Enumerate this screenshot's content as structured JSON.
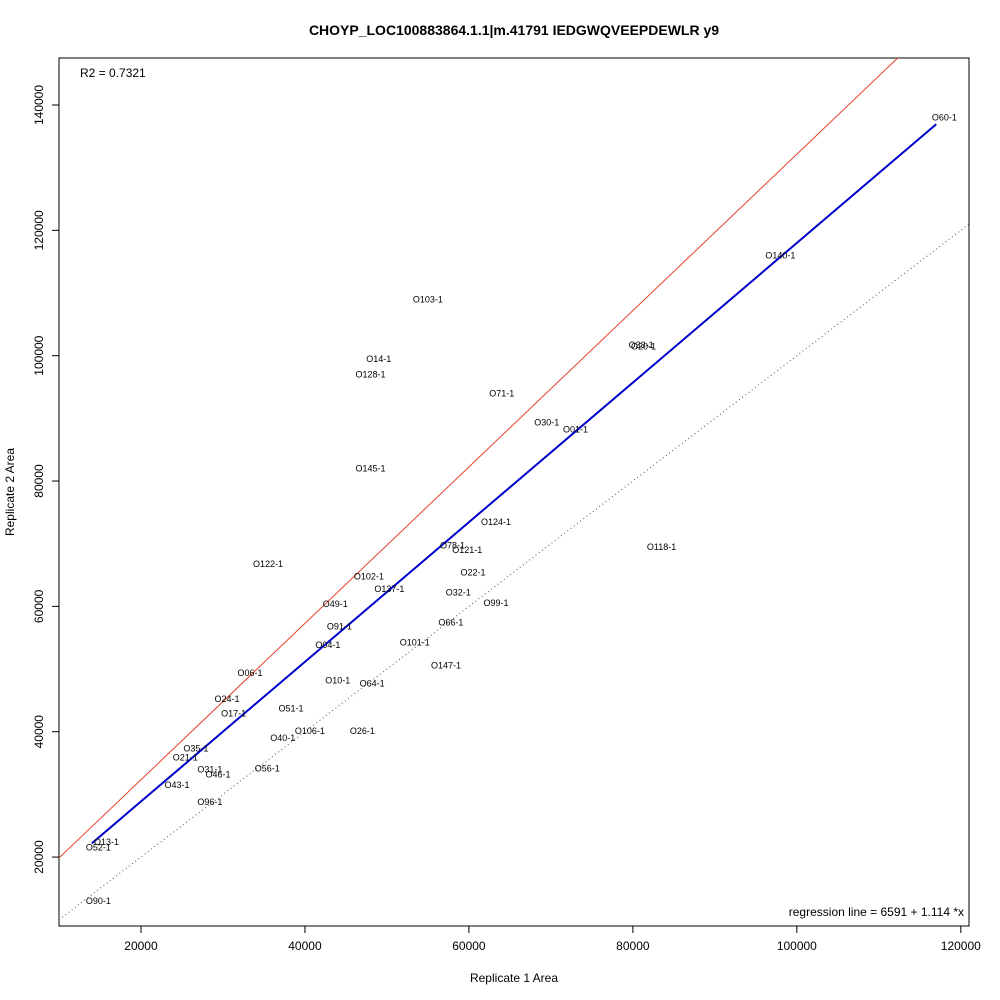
{
  "chart_data": {
    "type": "scatter",
    "title": "CHOYP_LOC100883864.1.1|m.41791 IEDGWQVEEPDEWLR y9",
    "xlabel": "Replicate 1 Area",
    "ylabel": "Replicate 2 Area",
    "xlim": [
      10000,
      121000
    ],
    "ylim": [
      9000,
      147500
    ],
    "xticks": [
      20000,
      40000,
      60000,
      80000,
      100000,
      120000
    ],
    "yticks": [
      20000,
      40000,
      60000,
      80000,
      100000,
      120000,
      140000
    ],
    "grid": false,
    "r2_label": "R2 = 0.7321",
    "regression_label": "regression line = 6591 + 1.114 *x",
    "regression": {
      "intercept": 6591,
      "slope": 1.114,
      "x_range": [
        14000,
        117000
      ],
      "color": "#0000cc"
    },
    "upper_line": {
      "intercept": 6591,
      "slope": 1.114,
      "offset_factor": 1.12,
      "color": "#e8402a"
    },
    "identity_line": {
      "color": "#555555",
      "style": "dotted"
    },
    "points": [
      {
        "label": "O60-1",
        "x": 118000,
        "y": 138000
      },
      {
        "label": "O140-1",
        "x": 98000,
        "y": 116000
      },
      {
        "label": "O103-1",
        "x": 55000,
        "y": 109000
      },
      {
        "label": "O33-1",
        "x": 81000,
        "y": 101700
      },
      {
        "label": "O20-1",
        "x": 81300,
        "y": 101500
      },
      {
        "label": "O14-1",
        "x": 49000,
        "y": 99500
      },
      {
        "label": "O128-1",
        "x": 48000,
        "y": 97000
      },
      {
        "label": "O71-1",
        "x": 64000,
        "y": 94000
      },
      {
        "label": "O30-1",
        "x": 69500,
        "y": 89300
      },
      {
        "label": "O01-1",
        "x": 73000,
        "y": 88200
      },
      {
        "label": "O145-1",
        "x": 48000,
        "y": 82000
      },
      {
        "label": "O124-1",
        "x": 63300,
        "y": 73500
      },
      {
        "label": "O118-1",
        "x": 83500,
        "y": 69500
      },
      {
        "label": "O78-1",
        "x": 58000,
        "y": 69700
      },
      {
        "label": "O121-1",
        "x": 59800,
        "y": 69000
      },
      {
        "label": "O122-1",
        "x": 35500,
        "y": 66800
      },
      {
        "label": "O102-1",
        "x": 47800,
        "y": 64800
      },
      {
        "label": "O22-1",
        "x": 60500,
        "y": 65400
      },
      {
        "label": "O137-1",
        "x": 50300,
        "y": 62800
      },
      {
        "label": "O32-1",
        "x": 58700,
        "y": 62200
      },
      {
        "label": "O49-1",
        "x": 43700,
        "y": 60400
      },
      {
        "label": "O99-1",
        "x": 63300,
        "y": 60500
      },
      {
        "label": "O66-1",
        "x": 57800,
        "y": 57400
      },
      {
        "label": "O91-1",
        "x": 44200,
        "y": 56800
      },
      {
        "label": "O04-1",
        "x": 42800,
        "y": 53800
      },
      {
        "label": "O101-1",
        "x": 53400,
        "y": 54200
      },
      {
        "label": "O147-1",
        "x": 57200,
        "y": 50600
      },
      {
        "label": "O06-1",
        "x": 33300,
        "y": 49400
      },
      {
        "label": "O10-1",
        "x": 44000,
        "y": 48200
      },
      {
        "label": "O64-1",
        "x": 48200,
        "y": 47700
      },
      {
        "label": "O24-1",
        "x": 30500,
        "y": 45200
      },
      {
        "label": "O51-1",
        "x": 38300,
        "y": 43700
      },
      {
        "label": "O17-1",
        "x": 31300,
        "y": 42900
      },
      {
        "label": "O106-1",
        "x": 40600,
        "y": 40100
      },
      {
        "label": "O26-1",
        "x": 47000,
        "y": 40100
      },
      {
        "label": "O40-1",
        "x": 37300,
        "y": 39000
      },
      {
        "label": "O35-1",
        "x": 26700,
        "y": 37300
      },
      {
        "label": "O21-1",
        "x": 25400,
        "y": 35900
      },
      {
        "label": "O31-1",
        "x": 28400,
        "y": 34000
      },
      {
        "label": "O56-1",
        "x": 35400,
        "y": 34100
      },
      {
        "label": "O46-1",
        "x": 29400,
        "y": 33200
      },
      {
        "label": "O43-1",
        "x": 24400,
        "y": 31500
      },
      {
        "label": "O96-1",
        "x": 28400,
        "y": 28800
      },
      {
        "label": "O13-1",
        "x": 15800,
        "y": 22400
      },
      {
        "label": "O52-1",
        "x": 14800,
        "y": 21500
      },
      {
        "label": "O90-1",
        "x": 14800,
        "y": 13000
      }
    ]
  }
}
